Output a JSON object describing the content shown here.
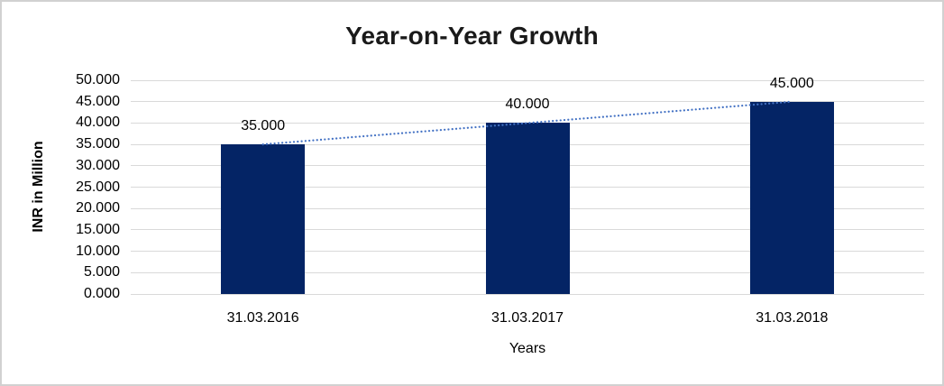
{
  "window": {
    "background_color": "#ffffff",
    "border_color": "#d1d1d1"
  },
  "chart_data": {
    "type": "bar",
    "title": "Year-on-Year Growth",
    "xlabel": "Years",
    "ylabel": "INR in Million",
    "categories": [
      "31.03.2016",
      "31.03.2017",
      "31.03.2018"
    ],
    "values": [
      35,
      40,
      45
    ],
    "value_labels": [
      "35.000",
      "40.000",
      "45.000"
    ],
    "y_axis": {
      "min": 0,
      "max": 50,
      "step": 5,
      "tick_labels": [
        "0.000",
        "5.000",
        "10.000",
        "15.000",
        "20.000",
        "25.000",
        "30.000",
        "35.000",
        "40.000",
        "45.000",
        "50.000"
      ]
    },
    "grid": "horizontal",
    "gridline_color": "#d9d9d9",
    "legend": "none",
    "bar_color": "#042465",
    "trendline": {
      "show": true,
      "style": "dotted",
      "color": "#4472c4",
      "start_value": 35,
      "end_value": 45
    }
  }
}
